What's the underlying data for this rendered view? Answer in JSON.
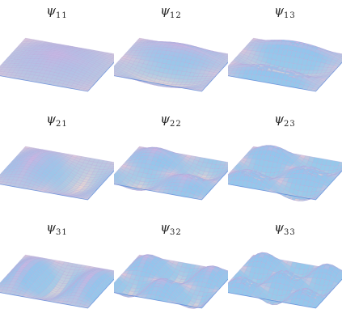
{
  "title": "",
  "modes": [
    {
      "label": "ψ",
      "sub": "11",
      "m": 1,
      "n": 1
    },
    {
      "label": "ψ",
      "sub": "12",
      "m": 1,
      "n": 2
    },
    {
      "label": "ψ",
      "sub": "13",
      "m": 1,
      "n": 3
    },
    {
      "label": "ψ",
      "sub": "21",
      "m": 2,
      "n": 1
    },
    {
      "label": "ψ",
      "sub": "22",
      "m": 2,
      "n": 2
    },
    {
      "label": "ψ",
      "sub": "23",
      "m": 2,
      "n": 3
    },
    {
      "label": "ψ",
      "sub": "31",
      "m": 3,
      "n": 1
    },
    {
      "label": "ψ",
      "sub": "32",
      "m": 3,
      "n": 2
    },
    {
      "label": "ψ",
      "sub": "33",
      "m": 3,
      "n": 3
    }
  ],
  "colors": {
    "surface_top": "#c8b6e2",
    "surface_mid": "#e9d6d2",
    "surface_ridge": "#7fc8f0",
    "surface_edge": "#3d78d6",
    "mesh": "#b9a6d8"
  }
}
